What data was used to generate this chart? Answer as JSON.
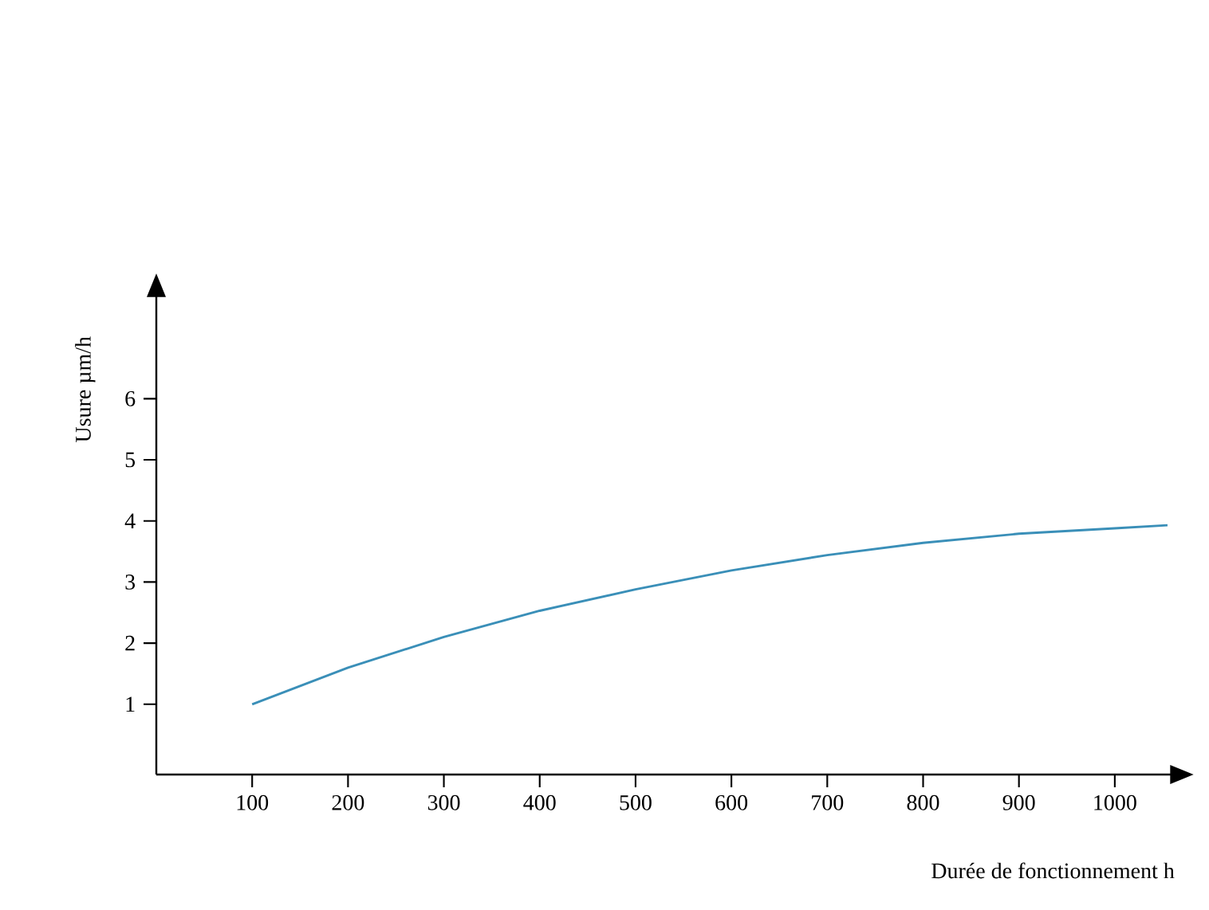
{
  "chart_data": {
    "type": "line",
    "xlabel": "Durée de fonctionnement h",
    "ylabel": "Usure µm/h",
    "x": [
      100,
      200,
      300,
      400,
      500,
      600,
      700,
      800,
      900,
      1000,
      1055
    ],
    "series": [
      {
        "color": "#3a8fb8",
        "values": [
          1.0,
          1.6,
          2.1,
          2.53,
          2.88,
          3.19,
          3.44,
          3.64,
          3.79,
          3.88,
          3.93
        ]
      }
    ],
    "xlim": [
      0,
      1060
    ],
    "ylim": [
      -0.15,
      7.7
    ],
    "xticks": [
      100,
      200,
      300,
      400,
      500,
      600,
      700,
      800,
      900,
      1000
    ],
    "yticks": [
      1,
      2,
      3,
      4,
      5,
      6
    ],
    "marker": "none",
    "line_style": "solid"
  }
}
